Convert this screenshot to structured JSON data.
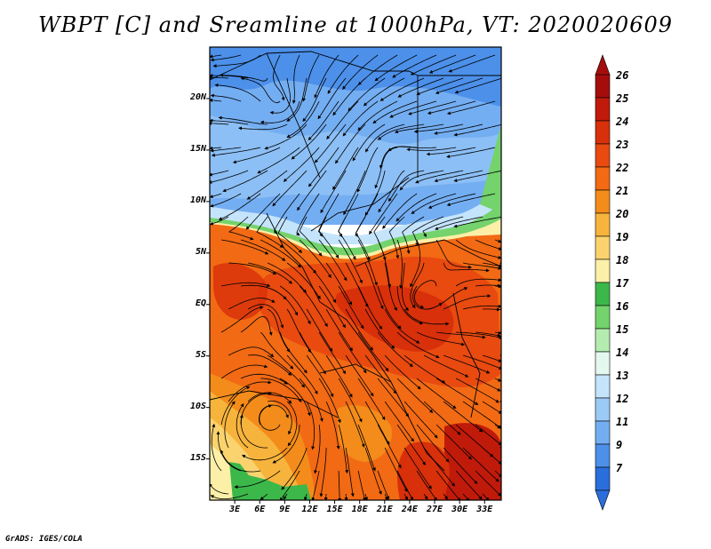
{
  "title": "WBPT [C] and Sreamline at 1000hPa, VT: 2020020609",
  "footer": "GrADS: IGES/COLA",
  "map": {
    "lat_labels": [
      "20N",
      "15N",
      "10N",
      "5N",
      "EQ",
      "5S",
      "10S",
      "15S"
    ],
    "lat_values": [
      20,
      15,
      10,
      5,
      0,
      -5,
      -10,
      -15
    ],
    "lon_labels": [
      "3E",
      "6E",
      "9E",
      "12E",
      "15E",
      "18E",
      "21E",
      "24E",
      "27E",
      "30E",
      "33E"
    ],
    "lon_values": [
      3,
      6,
      9,
      12,
      15,
      18,
      21,
      24,
      27,
      30,
      33
    ],
    "lat_range": [
      -19,
      25
    ],
    "lon_range": [
      0,
      35
    ],
    "variable": "WBPT [C]",
    "level": "1000hPa"
  },
  "colorbar": {
    "labels": [
      "26",
      "25",
      "24",
      "23",
      "22",
      "21",
      "20",
      "19",
      "18",
      "17",
      "16",
      "15",
      "14",
      "13",
      "12",
      "11",
      "9",
      "7"
    ],
    "colors": [
      "#a50d0d",
      "#c01a0a",
      "#d8300a",
      "#e84a10",
      "#f26a14",
      "#f38c1a",
      "#f7b43c",
      "#fbd36e",
      "#fcefa8",
      "#3cb84a",
      "#74d36c",
      "#b4ecb0",
      "#e4f8f0",
      "#c4e4fc",
      "#9ccaf6",
      "#74aef2",
      "#4c90ea",
      "#2a6edc"
    ],
    "top_color": "#a50d0d",
    "bottom_color": "#2a6edc"
  }
}
